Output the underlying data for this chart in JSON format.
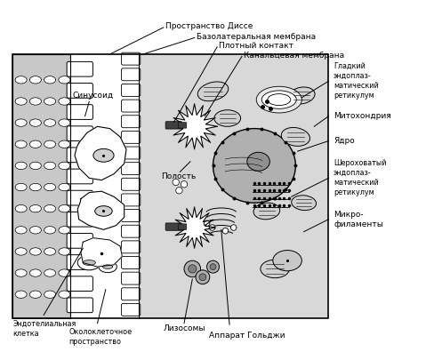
{
  "background_color": "#ffffff",
  "fig_width": 4.79,
  "fig_height": 3.96,
  "dpi": 100,
  "labels": {
    "prostranstvo_disse": "Пространство Диссе",
    "bazolateralnaya": "Базолатеральная мембрана",
    "plotny_kontakt": "Плотный контакт",
    "kanaltsevaya": "Канальцевая мембрана",
    "sinusoid": "Синусоид",
    "polost": "Полость",
    "gladky": "Гладкий\nэндоплаз-\nматический\nретикулум",
    "mitohondriya": "Митохондрия",
    "yadro": "Ядро",
    "sherokhovaty": "Шероховатый\nэндоплаз-\nматический\nретикулум",
    "mikrofilamenty": "Микро-\nфиламенты",
    "endotelialnaya": "Эндотелиальная\nклетка",
    "okolokletochnoe": "Околоклеточное\nпространство",
    "lizosomy": "Лизосомы",
    "apparat_goldzhi": "Аппарат Гольджи"
  },
  "colors": {
    "gray_wall": "#c8c8c8",
    "cell_interior": "#d8d8d8",
    "sinusoid_space": "#ffffff",
    "microvilli_fill": "#ffffff",
    "nucleus_fill": "#b0b0b0",
    "nucleus_inner": "#909090",
    "mito_fill": "#d0d0d0",
    "line_color": "#000000"
  }
}
